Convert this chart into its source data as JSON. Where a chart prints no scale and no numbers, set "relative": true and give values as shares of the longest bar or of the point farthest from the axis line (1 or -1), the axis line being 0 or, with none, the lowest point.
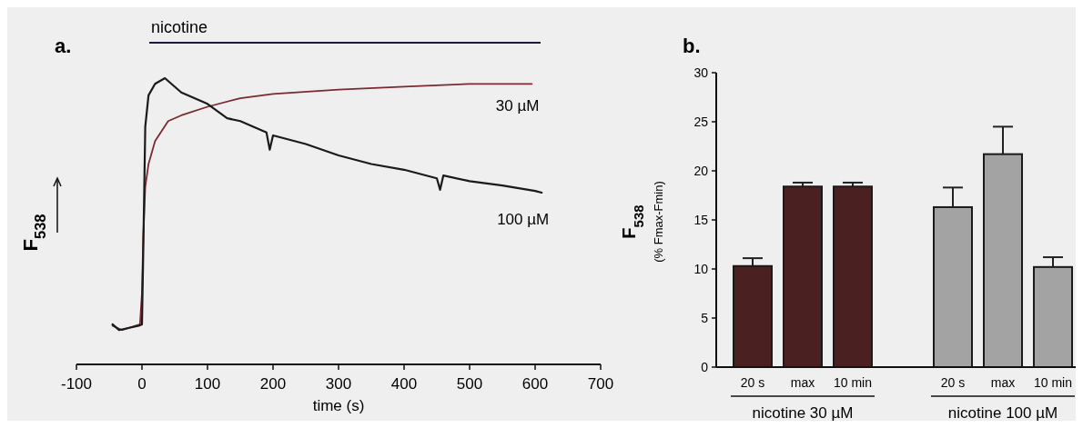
{
  "chart_data": [
    {
      "type": "line",
      "title": "a.",
      "xlabel": "time (s)",
      "ylabel": "F$_{538}$",
      "relative": true,
      "tick_labels": "x",
      "xlim": [
        -100,
        700
      ],
      "xticks": [
        -100,
        0,
        100,
        200,
        300,
        400,
        500,
        600,
        700
      ],
      "annotations": [
        "nicotine"
      ],
      "series": [
        {
          "name": "30 µM",
          "color": "#7a2a30",
          "x": [
            -45,
            -30,
            -3,
            0,
            2,
            5,
            10,
            20,
            40,
            60,
            100,
            150,
            200,
            300,
            400,
            500,
            595
          ],
          "values": [
            0.135,
            0.12,
            0.14,
            0.25,
            0.45,
            0.62,
            0.7,
            0.78,
            0.85,
            0.87,
            0.9,
            0.93,
            0.945,
            0.96,
            0.97,
            0.98,
            0.98
          ]
        },
        {
          "name": "100 µM",
          "color": "#1a1a1a",
          "x": [
            -45,
            -35,
            -5,
            0,
            2,
            5,
            10,
            20,
            35,
            60,
            100,
            130,
            150,
            190,
            195,
            200,
            250,
            300,
            350,
            400,
            450,
            455,
            460,
            500,
            550,
            600,
            610
          ],
          "values": [
            0.14,
            0.12,
            0.135,
            0.14,
            0.4,
            0.83,
            0.94,
            0.98,
            1,
            0.95,
            0.91,
            0.86,
            0.85,
            0.81,
            0.75,
            0.8,
            0.77,
            0.73,
            0.7,
            0.68,
            0.65,
            0.61,
            0.66,
            0.64,
            0.625,
            0.606,
            0.6
          ]
        }
      ]
    },
    {
      "type": "bar",
      "title": "b.",
      "ylabel": "F$_{538}$\n(% Fmax-Fmin)",
      "categories": [
        "20 s",
        "max",
        "10 min",
        null,
        "20 s",
        "max",
        "10 min"
      ],
      "ylim": [
        0,
        30
      ],
      "yticks": [
        0,
        5,
        10,
        15,
        20,
        25,
        30
      ],
      "series": [
        {
          "name": "nicotine 30 µM",
          "color": "#4a2020",
          "values": [
            10.3,
            18.4,
            18.4,
            null,
            null,
            null,
            null
          ],
          "errors": [
            [
              10.3,
              11.1
            ],
            [
              18.4,
              18.8
            ],
            [
              18.4,
              18.8
            ],
            null,
            null,
            null,
            null
          ]
        },
        {
          "name": "nicotine 100 µM",
          "color": "#a3a3a3",
          "values": [
            null,
            null,
            null,
            null,
            16.3,
            21.7,
            10.2
          ],
          "errors": [
            null,
            null,
            null,
            null,
            [
              16.3,
              18.3
            ],
            [
              21.7,
              24.5
            ],
            [
              10.2,
              11.2
            ]
          ]
        }
      ]
    }
  ]
}
